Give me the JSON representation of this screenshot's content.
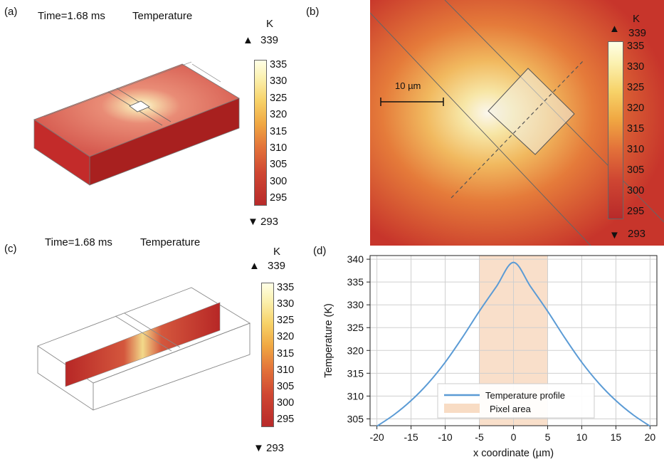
{
  "panels": {
    "a": {
      "label": "(a)",
      "time": "Time=1.68 ms",
      "quantity": "Temperature",
      "colorbar": {
        "unit": "K",
        "max": "339",
        "min": "293",
        "ticks": [
          "335",
          "330",
          "325",
          "320",
          "315",
          "310",
          "305",
          "300",
          "295"
        ]
      }
    },
    "b": {
      "label": "(b)",
      "scale_label": "10 µm",
      "colorbar": {
        "unit": "K",
        "max": "339",
        "min": "293",
        "ticks": [
          "335",
          "330",
          "325",
          "320",
          "315",
          "310",
          "305",
          "300",
          "295"
        ]
      }
    },
    "c": {
      "label": "(c)",
      "time": "Time=1.68 ms",
      "quantity": "Temperature",
      "colorbar": {
        "unit": "K",
        "max": "339",
        "min": "293",
        "ticks": [
          "335",
          "330",
          "325",
          "320",
          "315",
          "310",
          "305",
          "300",
          "295"
        ]
      }
    },
    "d": {
      "label": "(d)"
    }
  },
  "icons": {
    "up": "triangle-up-icon",
    "down": "triangle-down-icon"
  },
  "colors": {
    "curve": "#5b9bd5",
    "pixel_area": "#f8dcc4",
    "heat_hot": "#ffffe6",
    "heat_cold": "#b82a2a"
  },
  "chart_data": {
    "type": "line",
    "xlabel": "x coordinate (µm)",
    "ylabel": "Temperature (K)",
    "xlim": [
      -21,
      21
    ],
    "ylim": [
      303.5,
      340.8
    ],
    "xticks": [
      -20,
      -15,
      -10,
      -5,
      0,
      5,
      10,
      15,
      20
    ],
    "yticks": [
      305,
      310,
      315,
      320,
      325,
      330,
      335,
      340
    ],
    "grid": true,
    "legend_position": "lower-center",
    "series": [
      {
        "name": "Temperature profile",
        "x": [
          -20,
          -17.5,
          -15,
          -12.5,
          -10,
          -7.5,
          -5,
          -2.5,
          0,
          2.5,
          5,
          7.5,
          10,
          12.5,
          15,
          17.5,
          20
        ],
        "values": [
          303.4,
          305.9,
          309.0,
          312.8,
          317.4,
          322.8,
          328.6,
          334.0,
          339.3,
          334.0,
          328.6,
          322.8,
          317.4,
          312.8,
          309.0,
          305.9,
          303.4
        ]
      }
    ],
    "shaded_region": {
      "name": "Pixel area",
      "x": [
        -5,
        5
      ]
    }
  }
}
